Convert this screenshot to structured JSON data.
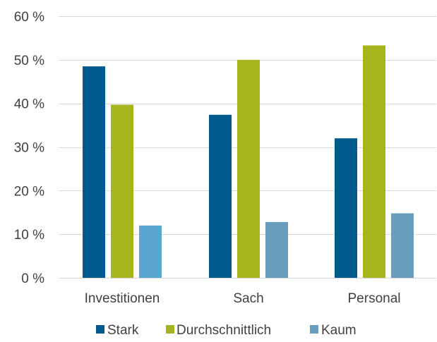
{
  "chart_data": {
    "type": "bar",
    "title": "",
    "xlabel": "",
    "ylabel": "",
    "categories": [
      "Investitionen",
      "Sach",
      "Personal"
    ],
    "series": [
      {
        "name": "Stark",
        "values": [
          48.5,
          37.4,
          32.0
        ],
        "color": "#005A8C"
      },
      {
        "name": "Durchschnittlich",
        "values": [
          39.7,
          50.0,
          53.3
        ],
        "color": "#A5B51D"
      },
      {
        "name": "Kaum",
        "values": [
          12.0,
          12.8,
          14.8
        ],
        "color": "#5FA0C0"
      }
    ],
    "ylim": [
      0,
      60
    ],
    "yticks": [
      0,
      10,
      20,
      30,
      40,
      50,
      60
    ],
    "ytick_labels": [
      "0 %",
      "10 %",
      "20 %",
      "30 %",
      "40 %",
      "50 %",
      "60 %"
    ],
    "grid": true,
    "legend_position": "bottom",
    "gridline_color": "#D9D9D9"
  }
}
